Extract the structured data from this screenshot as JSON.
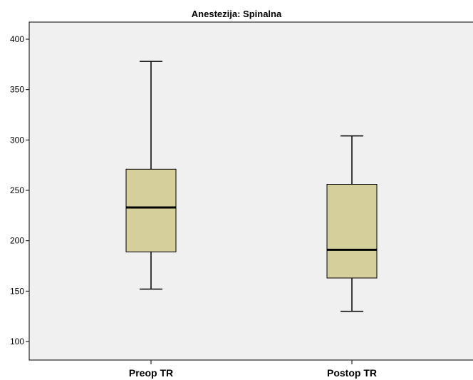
{
  "chart_data": {
    "type": "boxplot",
    "title": "Anestezija: Spinalna",
    "xlabel": "",
    "ylabel": "",
    "categories": [
      "Preop TR",
      "Postop TR"
    ],
    "boxes": [
      {
        "category": "Preop TR",
        "min": 152,
        "q1": 189,
        "median": 233,
        "q3": 271,
        "max": 378
      },
      {
        "category": "Postop TR",
        "min": 130,
        "q1": 163,
        "median": 191,
        "q3": 256,
        "max": 304
      }
    ],
    "ylim": [
      85,
      425
    ],
    "yticks": [
      100,
      150,
      200,
      250,
      300,
      350,
      400
    ],
    "grid": false,
    "legend": "none",
    "colors": {
      "plot_background": "#f0f0f0",
      "box_fill": "#d5cf9c",
      "stroke": "#000000"
    }
  }
}
